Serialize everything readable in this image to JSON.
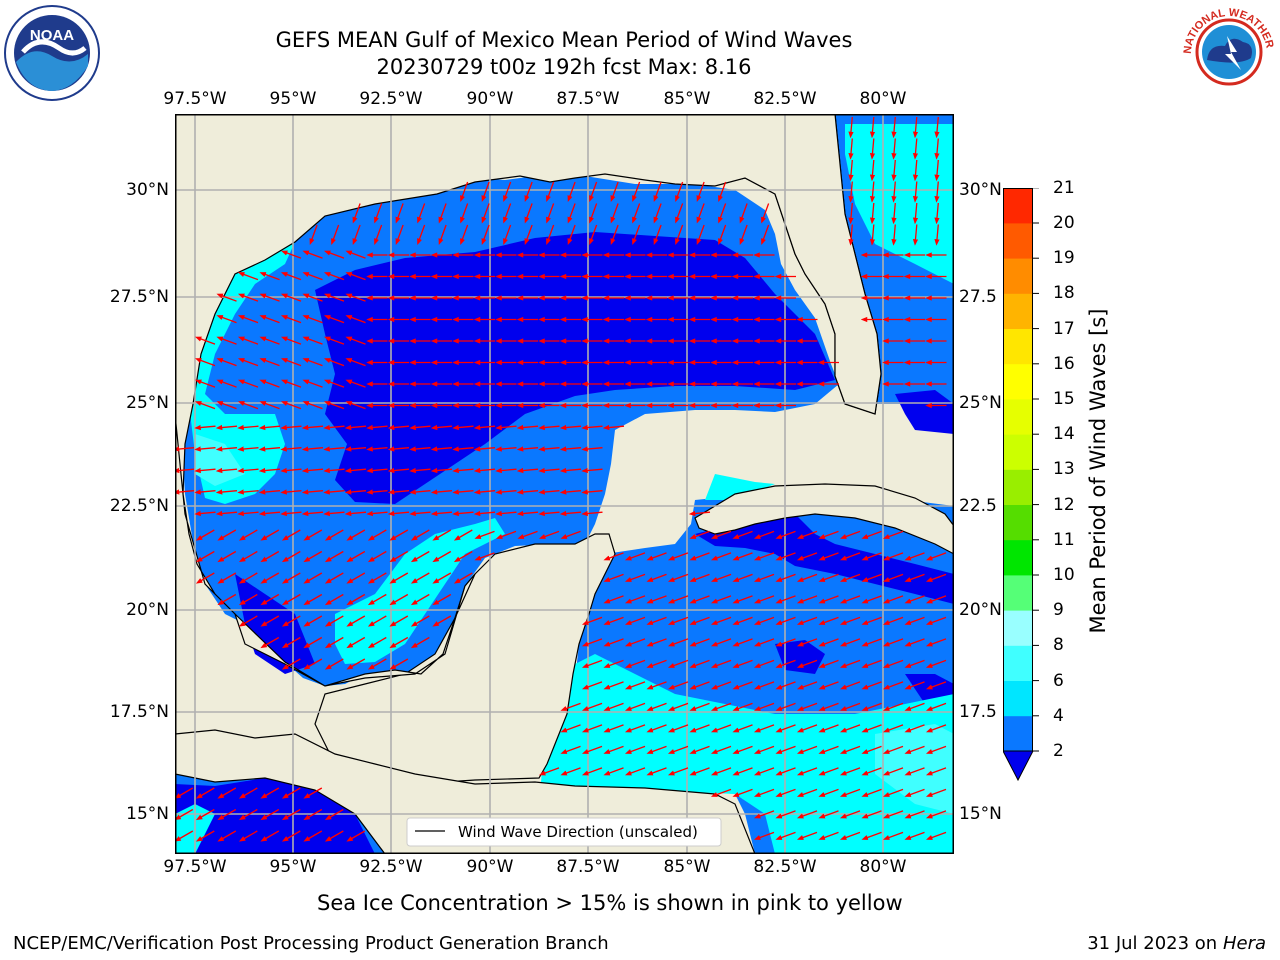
{
  "header": {
    "title_line1": "GEFS MEAN Gulf of Mexico Mean Period of Wind Waves",
    "title_line2": "20230729 t00z 192h fcst   Max: 8.16"
  },
  "logos": {
    "left": {
      "icon": "noaa-logo",
      "text": "NOAA"
    },
    "right": {
      "icon": "national-weather-service-logo",
      "text": "NATIONAL WEATHER SERVICE"
    }
  },
  "map": {
    "lon_ticks": [
      "97.5°W",
      "95°W",
      "92.5°W",
      "90°W",
      "87.5°W",
      "85°W",
      "82.5°W",
      "80°W"
    ],
    "lat_ticks_left": [
      "30°N",
      "27.5°N",
      "25°N",
      "22.5°N",
      "20°N",
      "17.5°N",
      "15°N"
    ],
    "lat_ticks_right": [
      "30°N",
      "27.5",
      "25°N",
      "22.5",
      "20°N",
      "17.5",
      "15°N"
    ],
    "legend_label": "Wind Wave Direction (unscaled)",
    "colors": {
      "land": "#efedda",
      "level_2_4": "#0a78ff",
      "below_2": "#0000ee",
      "level_4_6": "#00ffff",
      "level_6_8": "#40ffff",
      "arrow": "#ff0000",
      "grid": "#b0b0b0"
    }
  },
  "colorbar": {
    "label": "Mean Period of Wind Waves [s]",
    "ticks": [
      "2",
      "4",
      "6",
      "8",
      "9",
      "10",
      "11",
      "12",
      "13",
      "14",
      "15",
      "16",
      "17",
      "18",
      "19",
      "20",
      "21"
    ],
    "colors": [
      "#0a78ff",
      "#00e6ff",
      "#40ffff",
      "#99ffff",
      "#55ff77",
      "#00e600",
      "#55dd00",
      "#99ee00",
      "#ccff00",
      "#e6ff00",
      "#ffff00",
      "#ffe600",
      "#ffb400",
      "#ff8c00",
      "#ff5a00",
      "#ff2800"
    ],
    "extend_color": "#0000ee"
  },
  "footer": {
    "ice_note": "Sea Ice Concentration > 15% is shown in pink to yellow",
    "credit": "NCEP/EMC/Verification Post Processing Product Generation Branch",
    "date": "31 Jul 2023 on",
    "host": "Hera"
  }
}
